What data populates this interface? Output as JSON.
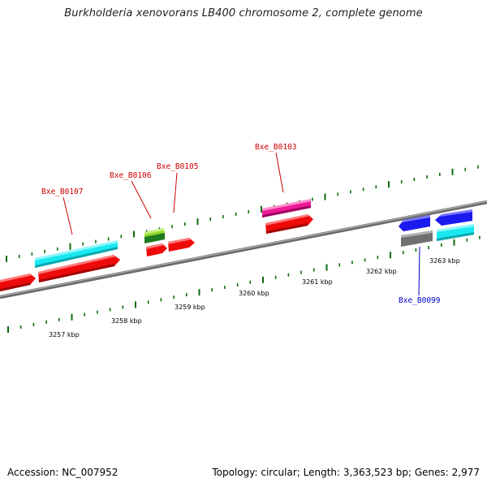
{
  "title": "Burkholderia xenovorans LB400 chromosome 2, complete genome",
  "footer": {
    "accession": "Accession: NC_007952",
    "topology": "Topology: circular; Length: 3,363,523 bp; Genes: 2,977"
  },
  "colors": {
    "background": "#ffffff",
    "backbone": "#8a8a8a",
    "tick": "#0d6b0d",
    "label_forward": "#cc0000",
    "label_reverse": "#0000cc",
    "gene_red": "#ee0a0a",
    "gene_cyan": "#1ae8f0",
    "gene_magenta": "#ee1a9a",
    "gene_green": "#8bd62a",
    "gene_blue": "#1a1aee",
    "gene_gray": "#707070"
  },
  "scale_labels": [
    "3257 kbp",
    "3258 kbp",
    "3259 kbp",
    "3260 kbp",
    "3261 kbp",
    "3262 kbp",
    "3263 kbp"
  ],
  "gene_labels": [
    {
      "id": "Bxe_B0107",
      "strand": "forward"
    },
    {
      "id": "Bxe_B0106",
      "strand": "forward"
    },
    {
      "id": "Bxe_B0105",
      "strand": "forward"
    },
    {
      "id": "Bxe_B0103",
      "strand": "forward"
    },
    {
      "id": "Bxe_B0099",
      "strand": "reverse"
    }
  ]
}
